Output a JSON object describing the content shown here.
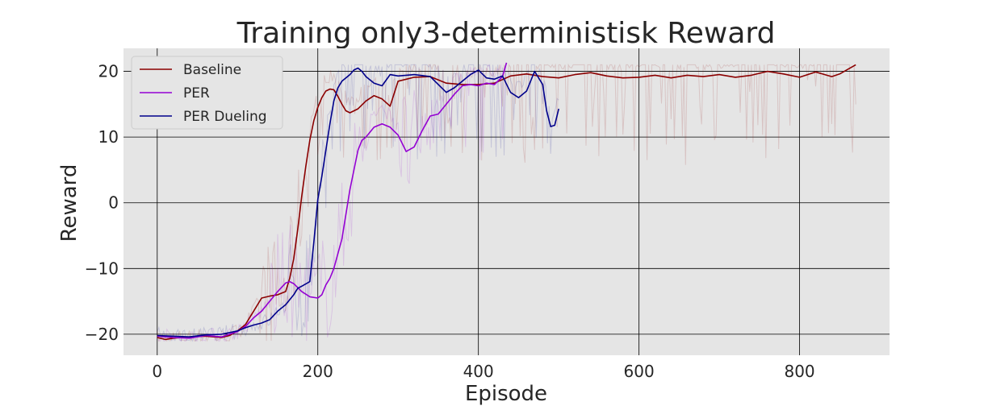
{
  "chart_data": {
    "type": "line",
    "title": "Training only3-deterministisk Reward",
    "xlabel": "Episode",
    "ylabel": "Reward",
    "xlim": [
      -42,
      912
    ],
    "ylim": [
      -23.2,
      23.5
    ],
    "xticks": [
      0,
      200,
      400,
      600,
      800
    ],
    "yticks": [
      -20,
      -10,
      0,
      10,
      20
    ],
    "grid": true,
    "legend_position": "top-left",
    "background_color": "#e5e5e5",
    "series": [
      {
        "name": "Baseline",
        "color": "#8b0000",
        "x": [
          0,
          10,
          20,
          40,
          60,
          80,
          90,
          100,
          110,
          120,
          130,
          140,
          150,
          160,
          165,
          170,
          175,
          180,
          185,
          190,
          195,
          200,
          205,
          210,
          215,
          220,
          225,
          230,
          235,
          240,
          250,
          260,
          270,
          280,
          290,
          300,
          320,
          340,
          360,
          380,
          400,
          420,
          440,
          460,
          480,
          500,
          520,
          540,
          560,
          580,
          600,
          620,
          640,
          660,
          680,
          700,
          720,
          740,
          760,
          780,
          800,
          820,
          840,
          850,
          860,
          870
        ],
        "y": [
          -20.5,
          -20.8,
          -20.6,
          -20.4,
          -20.3,
          -20.5,
          -20.2,
          -19.5,
          -18.5,
          -16.5,
          -14.5,
          -14.2,
          -14.0,
          -13.5,
          -11.5,
          -8.5,
          -4.0,
          1.0,
          5.5,
          9.5,
          12.5,
          14.5,
          16.0,
          17.0,
          17.3,
          17.2,
          16.2,
          15.0,
          14.0,
          13.7,
          14.3,
          15.5,
          16.3,
          15.8,
          14.7,
          18.5,
          19.1,
          19.2,
          18.2,
          18.0,
          18.0,
          18.2,
          19.3,
          19.6,
          19.2,
          19.0,
          19.5,
          19.8,
          19.3,
          19.0,
          19.1,
          19.4,
          19.0,
          19.4,
          19.2,
          19.5,
          19.1,
          19.4,
          20.0,
          19.6,
          19.1,
          19.9,
          19.2,
          19.6,
          20.3,
          21.0
        ]
      },
      {
        "name": "PER",
        "color": "#9400d3",
        "x": [
          0,
          20,
          40,
          60,
          80,
          90,
          100,
          110,
          120,
          130,
          140,
          150,
          160,
          165,
          170,
          180,
          190,
          200,
          205,
          210,
          215,
          220,
          230,
          240,
          250,
          255,
          260,
          270,
          280,
          290,
          300,
          310,
          320,
          330,
          340,
          350,
          360,
          370,
          380,
          390,
          400,
          410,
          420,
          430,
          435
        ],
        "y": [
          -20.3,
          -20.5,
          -20.6,
          -20.2,
          -20.4,
          -20.0,
          -19.6,
          -18.8,
          -17.5,
          -16.5,
          -15.0,
          -13.5,
          -12.2,
          -12.0,
          -12.3,
          -13.5,
          -14.3,
          -14.5,
          -14.0,
          -12.5,
          -11.5,
          -10.0,
          -5.5,
          2.0,
          8.0,
          9.5,
          10.0,
          11.5,
          12.0,
          11.5,
          10.3,
          7.8,
          8.5,
          11.0,
          13.2,
          13.5,
          15.0,
          16.5,
          17.8,
          18.0,
          17.8,
          18.2,
          18.0,
          19.2,
          21.3
        ]
      },
      {
        "name": "PER Dueling",
        "color": "#00008b",
        "x": [
          0,
          20,
          40,
          60,
          80,
          100,
          110,
          120,
          130,
          140,
          150,
          160,
          170,
          175,
          180,
          190,
          195,
          200,
          205,
          210,
          215,
          220,
          225,
          230,
          240,
          245,
          250,
          255,
          260,
          270,
          280,
          290,
          300,
          320,
          340,
          360,
          370,
          380,
          390,
          400,
          410,
          420,
          430,
          440,
          450,
          460,
          470,
          480,
          485,
          490,
          495,
          500
        ],
        "y": [
          -20.2,
          -20.3,
          -20.4,
          -20.1,
          -20.0,
          -19.5,
          -19.0,
          -18.6,
          -18.3,
          -17.8,
          -16.5,
          -15.5,
          -14.0,
          -13.0,
          -12.7,
          -12.0,
          -6.0,
          0.5,
          4.0,
          8.0,
          12.0,
          15.5,
          17.5,
          18.5,
          19.5,
          20.2,
          20.5,
          20.0,
          19.2,
          18.2,
          17.8,
          19.5,
          19.3,
          19.5,
          19.2,
          16.8,
          17.5,
          18.5,
          19.5,
          20.2,
          19.0,
          18.8,
          19.3,
          16.8,
          16.0,
          17.0,
          20.0,
          18.0,
          14.0,
          11.6,
          11.8,
          14.3
        ]
      }
    ]
  }
}
